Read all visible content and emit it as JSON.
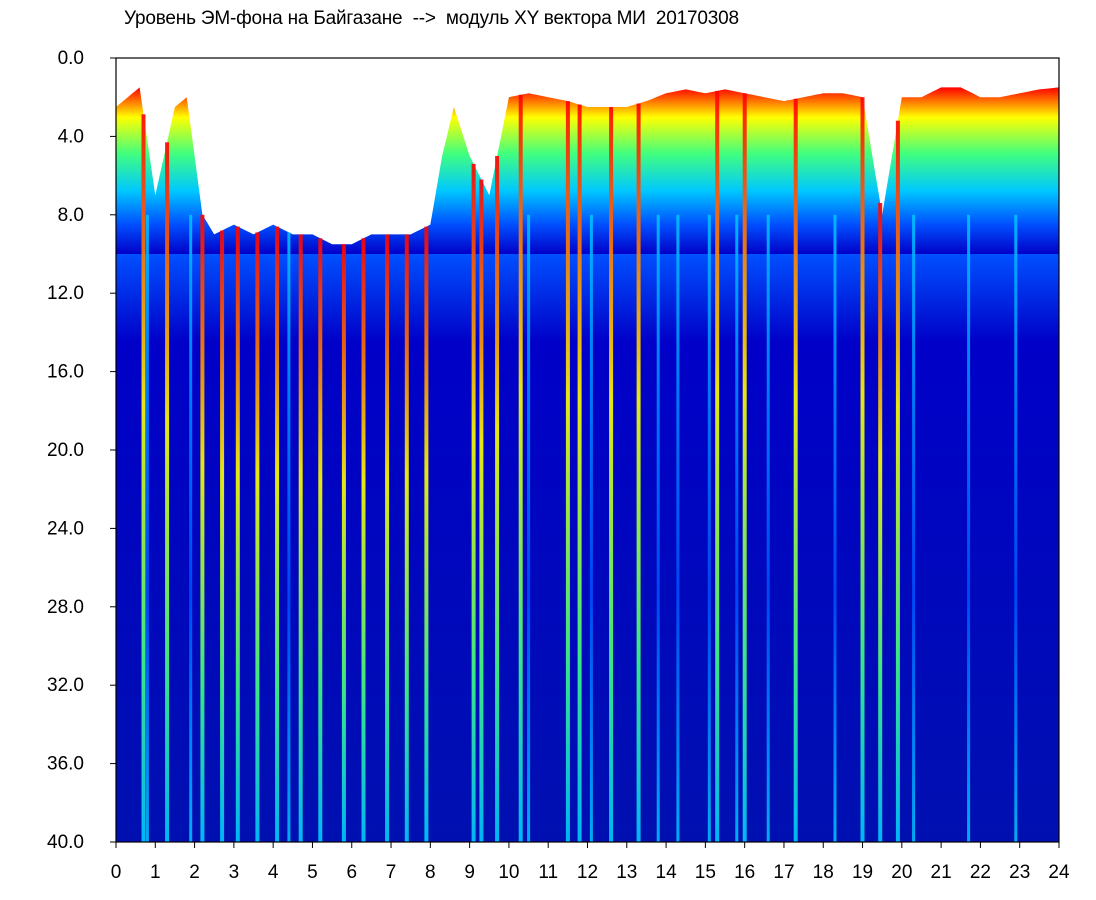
{
  "chart_data": {
    "type": "heatmap",
    "title": "Уровень ЭМ-фона на Байгазане  -->  модуль XY вектора МИ  20170308",
    "xlabel": "",
    "ylabel": "",
    "xlim": [
      0,
      24
    ],
    "ylim": [
      0.0,
      40.0
    ],
    "y_inverted": true,
    "x_ticks": [
      "0",
      "1",
      "2",
      "3",
      "4",
      "5",
      "6",
      "7",
      "8",
      "9",
      "10",
      "11",
      "12",
      "13",
      "14",
      "15",
      "16",
      "17",
      "18",
      "19",
      "20",
      "21",
      "22",
      "23",
      "24"
    ],
    "y_ticks": [
      "0.0",
      "4.0",
      "8.0",
      "12.0",
      "16.0",
      "20.0",
      "24.0",
      "28.0",
      "32.0",
      "36.0",
      "40.0"
    ],
    "colormap": [
      "#0000c8",
      "#0050ff",
      "#00c8ff",
      "#40ff80",
      "#ffff00",
      "#ff0000"
    ],
    "background_color": "#ffffff",
    "grid": false,
    "upper_boundary_hours": [
      0,
      0.3,
      0.6,
      1.0,
      1.5,
      1.8,
      2.2,
      2.5,
      3.0,
      3.5,
      4.0,
      4.5,
      5.0,
      5.5,
      6.0,
      6.5,
      7.0,
      7.5,
      8.0,
      8.3,
      8.6,
      9.0,
      9.5,
      10.0,
      10.5,
      11.0,
      11.5,
      12.0,
      12.5,
      13.0,
      13.5,
      14.0,
      14.5,
      15.0,
      15.5,
      16.0,
      16.5,
      17.0,
      17.5,
      18.0,
      18.5,
      19.0,
      19.5,
      20.0,
      20.5,
      21.0,
      21.5,
      22.0,
      22.5,
      23.0,
      23.5,
      24.0
    ],
    "upper_boundary_values": [
      2.5,
      2.0,
      1.5,
      7.0,
      2.5,
      2.0,
      8.0,
      9.0,
      8.5,
      9.0,
      8.5,
      9.0,
      9.0,
      9.5,
      9.5,
      9.0,
      9.0,
      9.0,
      8.5,
      5.0,
      2.5,
      5.0,
      7.0,
      2.0,
      1.8,
      2.0,
      2.2,
      2.5,
      2.5,
      2.5,
      2.2,
      1.8,
      1.6,
      1.8,
      1.6,
      1.8,
      2.0,
      2.2,
      2.0,
      1.8,
      1.8,
      2.0,
      8.0,
      2.0,
      2.0,
      1.5,
      1.5,
      2.0,
      2.0,
      1.8,
      1.6,
      1.5
    ],
    "hot_stripes_hours": [
      0.7,
      1.3,
      2.2,
      2.7,
      3.1,
      3.6,
      4.1,
      4.7,
      5.2,
      5.8,
      6.3,
      6.9,
      7.4,
      7.9,
      9.1,
      9.3,
      9.7,
      10.3,
      11.5,
      11.8,
      12.6,
      13.3,
      15.3,
      16.0,
      17.3,
      19.0,
      19.45,
      19.9
    ],
    "cool_stripes_hours": [
      0.8,
      1.9,
      4.4,
      10.5,
      12.1,
      13.8,
      14.3,
      15.1,
      15.8,
      16.6,
      18.3,
      20.3,
      21.7,
      22.9
    ]
  }
}
